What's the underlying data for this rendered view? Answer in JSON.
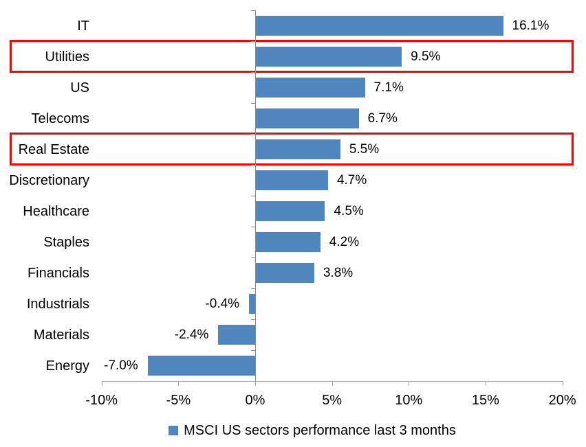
{
  "chart_data": {
    "type": "bar",
    "orientation": "horizontal",
    "title": "",
    "categories": [
      "IT",
      "Utilities",
      "US",
      "Telecoms",
      "Real Estate",
      "Discretionary",
      "Healthcare",
      "Staples",
      "Financials",
      "Industrials",
      "Materials",
      "Energy"
    ],
    "values": [
      16.1,
      9.5,
      7.1,
      6.7,
      5.5,
      4.7,
      4.5,
      4.2,
      3.8,
      -0.4,
      -2.4,
      -7.0
    ],
    "value_labels": [
      "16.1%",
      "9.5%",
      "7.1%",
      "6.7%",
      "5.5%",
      "4.7%",
      "4.5%",
      "4.2%",
      "3.8%",
      "-0.4%",
      "-2.4%",
      "-7.0%"
    ],
    "highlighted_categories": [
      "Utilities",
      "Real Estate"
    ],
    "x_ticks": [
      -10,
      -5,
      0,
      5,
      10,
      15,
      20
    ],
    "x_tick_labels": [
      "-10%",
      "-5%",
      "0%",
      "5%",
      "10%",
      "15%",
      "20%"
    ],
    "xlim": [
      -10,
      20
    ],
    "grid": "off",
    "legend_position": "bottom-center",
    "legend": [
      {
        "label": "MSCI US sectors performance last 3 months",
        "color": "#4e86bd"
      }
    ],
    "colors": {
      "bar": "#4e86bd",
      "highlight_box": "#ff0000",
      "axis": "#a6a6a6",
      "zero_axis": "#898989",
      "text": "#000000"
    }
  }
}
